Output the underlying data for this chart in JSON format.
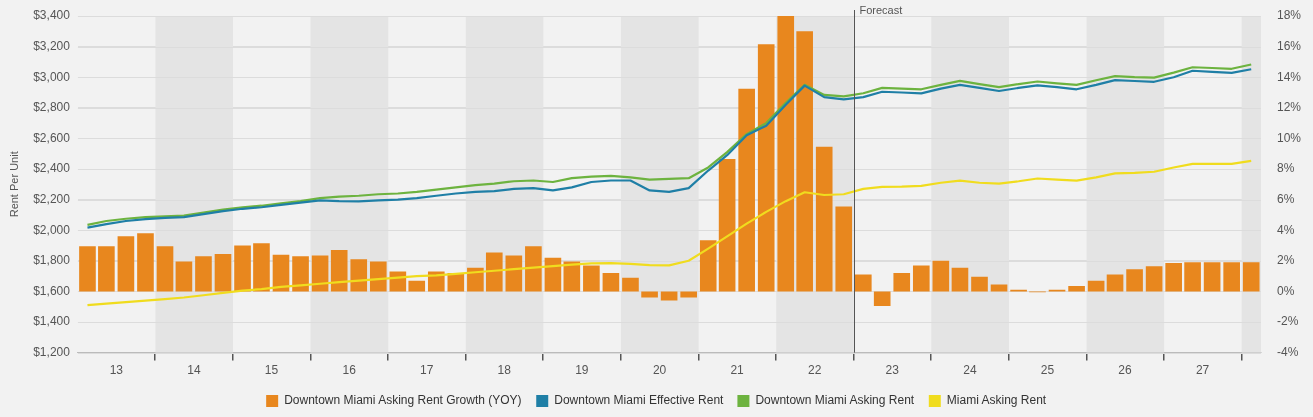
{
  "chart_data": {
    "type": "bar",
    "ylabel": "Rent Per Unit",
    "x": [
      "2013-02-15",
      "2013-05-15",
      "2013-08-15",
      "2013-11-15",
      "2014-02-15",
      "2014-05-15",
      "2014-08-15",
      "2014-11-15",
      "2015-02-15",
      "2015-05-15",
      "2015-08-15",
      "2015-11-15",
      "2016-02-15",
      "2016-05-15",
      "2016-08-15",
      "2016-11-15",
      "2017-02-15",
      "2017-05-15",
      "2017-08-15",
      "2017-11-15",
      "2018-02-15",
      "2018-05-15",
      "2018-08-15",
      "2018-11-15",
      "2019-02-15",
      "2019-05-15",
      "2019-08-15",
      "2019-11-15",
      "2020-02-15",
      "2020-05-15",
      "2020-08-15",
      "2020-11-15",
      "2021-02-15",
      "2021-05-15",
      "2021-08-15",
      "2021-11-15",
      "2022-02-15",
      "2022-05-15",
      "2022-08-15",
      "2022-11-15",
      "2023-02-15",
      "2023-05-15",
      "2023-08-15",
      "2023-11-15",
      "2024-02-15",
      "2024-05-15",
      "2024-08-15",
      "2024-11-15",
      "2025-02-15",
      "2025-05-15",
      "2025-08-15",
      "2025-11-15",
      "2026-02-15",
      "2026-05-15",
      "2026-08-15",
      "2026-11-15",
      "2027-02-15",
      "2027-05-15",
      "2027-08-15",
      "2027-11-15",
      "2028-02-15"
    ],
    "xlim": [
      "2013-01-01",
      "2028-04-01"
    ],
    "xticks": [
      {
        "value": "2013-07-01",
        "label": "13"
      },
      {
        "value": "2014-07-01",
        "label": "14"
      },
      {
        "value": "2015-07-01",
        "label": "15"
      },
      {
        "value": "2016-07-01",
        "label": "16"
      },
      {
        "value": "2017-07-01",
        "label": "17"
      },
      {
        "value": "2018-07-01",
        "label": "18"
      },
      {
        "value": "2019-07-01",
        "label": "19"
      },
      {
        "value": "2020-07-01",
        "label": "20"
      },
      {
        "value": "2021-07-01",
        "label": "21"
      },
      {
        "value": "2022-07-01",
        "label": "22"
      },
      {
        "value": "2023-07-01",
        "label": "23"
      },
      {
        "value": "2024-07-01",
        "label": "24"
      },
      {
        "value": "2025-07-01",
        "label": "25"
      },
      {
        "value": "2026-07-01",
        "label": "26"
      },
      {
        "value": "2027-07-01",
        "label": "27"
      }
    ],
    "ylim": [
      1200,
      3400
    ],
    "yticks": [
      {
        "value": 1200,
        "label": "$1,200"
      },
      {
        "value": 1400,
        "label": "$1,400"
      },
      {
        "value": 1600,
        "label": "$1,600"
      },
      {
        "value": 1800,
        "label": "$1,800"
      },
      {
        "value": 2000,
        "label": "$2,000"
      },
      {
        "value": 2200,
        "label": "$2,200"
      },
      {
        "value": 2400,
        "label": "$2,400"
      },
      {
        "value": 2600,
        "label": "$2,600"
      },
      {
        "value": 2800,
        "label": "$2,800"
      },
      {
        "value": 3000,
        "label": "$3,000"
      },
      {
        "value": 3200,
        "label": "$3,200"
      },
      {
        "value": 3400,
        "label": "$3,400"
      }
    ],
    "y2lim": [
      -4,
      18
    ],
    "y2ticks": [
      {
        "value": -4,
        "label": "-4%"
      },
      {
        "value": -2,
        "label": "-2%"
      },
      {
        "value": 0,
        "label": "0%"
      },
      {
        "value": 2,
        "label": "2%"
      },
      {
        "value": 4,
        "label": "4%"
      },
      {
        "value": 6,
        "label": "6%"
      },
      {
        "value": 8,
        "label": "8%"
      },
      {
        "value": 10,
        "label": "10%"
      },
      {
        "value": 12,
        "label": "12%"
      },
      {
        "value": 14,
        "label": "14%"
      },
      {
        "value": 16,
        "label": "16%"
      },
      {
        "value": 18,
        "label": "18%"
      }
    ],
    "series": [
      {
        "name": "Downtown Miami Asking Rent Growth (YOY)",
        "axis": "y2",
        "color": "#e8871e",
        "values": [
          2.95,
          2.95,
          3.6,
          3.8,
          2.95,
          1.95,
          2.3,
          2.45,
          3.0,
          3.15,
          2.4,
          2.3,
          2.35,
          2.7,
          2.1,
          1.95,
          1.3,
          0.7,
          1.3,
          1.2,
          1.55,
          2.55,
          2.35,
          2.95,
          2.2,
          1.95,
          1.7,
          1.2,
          0.9,
          -0.4,
          -0.6,
          -0.4,
          3.35,
          8.65,
          13.25,
          16.15,
          18.0,
          17.0,
          9.45,
          5.55,
          1.1,
          -0.95,
          1.2,
          1.7,
          2.0,
          1.55,
          0.95,
          0.45,
          0.1,
          -0.05,
          0.1,
          0.35,
          0.7,
          1.1,
          1.45,
          1.65,
          1.85,
          1.9,
          1.9,
          1.9,
          1.9
        ]
      },
      {
        "name": "Downtown Miami Effective Rent",
        "type": "line",
        "color": "#1f7fa6",
        "values": [
          2017,
          2040,
          2060,
          2072,
          2080,
          2085,
          2105,
          2125,
          2140,
          2150,
          2165,
          2180,
          2195,
          2190,
          2188,
          2195,
          2200,
          2210,
          2225,
          2240,
          2250,
          2255,
          2270,
          2275,
          2260,
          2280,
          2315,
          2325,
          2325,
          2260,
          2250,
          2275,
          2390,
          2490,
          2620,
          2683,
          2820,
          2945,
          2870,
          2855,
          2870,
          2905,
          2900,
          2894,
          2925,
          2950,
          2930,
          2910,
          2930,
          2946,
          2935,
          2921,
          2950,
          2981,
          2975,
          2970,
          3000,
          3042,
          3035,
          3028,
          3052
        ]
      },
      {
        "name": "Downtown Miami Asking Rent",
        "type": "line",
        "color": "#6db33f",
        "values": [
          2035,
          2060,
          2075,
          2085,
          2090,
          2095,
          2115,
          2135,
          2150,
          2160,
          2175,
          2190,
          2210,
          2220,
          2225,
          2235,
          2240,
          2250,
          2265,
          2280,
          2295,
          2305,
          2320,
          2325,
          2315,
          2340,
          2350,
          2355,
          2345,
          2330,
          2335,
          2340,
          2410,
          2510,
          2628,
          2700,
          2833,
          2950,
          2884,
          2875,
          2895,
          2930,
          2925,
          2921,
          2950,
          2976,
          2955,
          2935,
          2955,
          2972,
          2960,
          2950,
          2980,
          3007,
          3000,
          2997,
          3030,
          3065,
          3060,
          3055,
          3083
        ]
      },
      {
        "name": "Miami Asking Rent",
        "type": "line",
        "color": "#f0dc1e",
        "values": [
          1510,
          1520,
          1530,
          1540,
          1550,
          1560,
          1575,
          1590,
          1605,
          1615,
          1630,
          1640,
          1650,
          1660,
          1670,
          1680,
          1690,
          1700,
          1705,
          1715,
          1725,
          1735,
          1745,
          1755,
          1765,
          1775,
          1783,
          1785,
          1780,
          1772,
          1770,
          1800,
          1880,
          1960,
          2043,
          2120,
          2190,
          2248,
          2230,
          2235,
          2270,
          2283,
          2285,
          2290,
          2310,
          2324,
          2310,
          2305,
          2320,
          2338,
          2330,
          2324,
          2345,
          2371,
          2375,
          2382,
          2410,
          2433,
          2433,
          2433,
          2453
        ]
      }
    ],
    "bands": [
      {
        "axis": "x",
        "from": "2014-01-01",
        "to": "2015-01-01",
        "color": "#e4e4e4"
      },
      {
        "axis": "x",
        "from": "2016-01-01",
        "to": "2017-01-01",
        "color": "#e4e4e4"
      },
      {
        "axis": "x",
        "from": "2018-01-01",
        "to": "2019-01-01",
        "color": "#e4e4e4"
      },
      {
        "axis": "x",
        "from": "2020-01-01",
        "to": "2021-01-01",
        "color": "#e4e4e4"
      },
      {
        "axis": "x",
        "from": "2022-01-01",
        "to": "2023-01-01",
        "color": "#e4e4e4"
      },
      {
        "axis": "x",
        "from": "2024-01-01",
        "to": "2025-01-01",
        "color": "#e4e4e4"
      },
      {
        "axis": "x",
        "from": "2026-01-01",
        "to": "2027-01-01",
        "color": "#e4e4e4"
      },
      {
        "axis": "x",
        "from": "2028-01-01",
        "to": "2028-04-01",
        "color": "#e4e4e4"
      }
    ],
    "ref_lines": [
      {
        "axis": "x",
        "value": "2023-01-01",
        "label": "Forecast",
        "color": "#555555"
      }
    ],
    "grid": "y",
    "legend": "bottom"
  }
}
